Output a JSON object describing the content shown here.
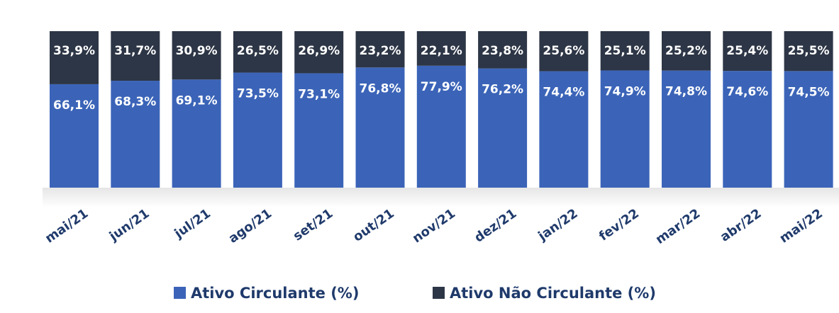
{
  "chart_data": {
    "type": "stacked_bar",
    "categories": [
      "mai/21",
      "jun/21",
      "jul/21",
      "ago/21",
      "set/21",
      "out/21",
      "nov/21",
      "dez/21",
      "jan/22",
      "fev/22",
      "mar/22",
      "abr/22",
      "mai/22"
    ],
    "ylim": [
      0,
      100
    ],
    "legend": "bottom",
    "series": [
      {
        "name": "Ativo Circulante (%)",
        "color": "#3b64b8",
        "values": [
          66.1,
          68.3,
          69.1,
          73.5,
          73.1,
          76.8,
          77.9,
          76.2,
          74.4,
          74.9,
          74.8,
          74.6,
          74.5
        ],
        "value_labels": [
          "66,1%",
          "68,3%",
          "69,1%",
          "73,5%",
          "73,1%",
          "76,8%",
          "77,9%",
          "76,2%",
          "74,4%",
          "74,9%",
          "74,8%",
          "74,6%",
          "74,5%"
        ]
      },
      {
        "name": "Ativo Não Circulante (%)",
        "color": "#2d3646",
        "values": [
          33.9,
          31.7,
          30.9,
          26.5,
          26.9,
          23.2,
          22.1,
          23.8,
          25.6,
          25.1,
          25.2,
          25.4,
          25.5
        ],
        "value_labels": [
          "33,9%",
          "31,7%",
          "30,9%",
          "26,5%",
          "26,9%",
          "23,2%",
          "22,1%",
          "23,8%",
          "25,6%",
          "25,1%",
          "25,2%",
          "25,4%",
          "25,5%"
        ]
      }
    ]
  }
}
